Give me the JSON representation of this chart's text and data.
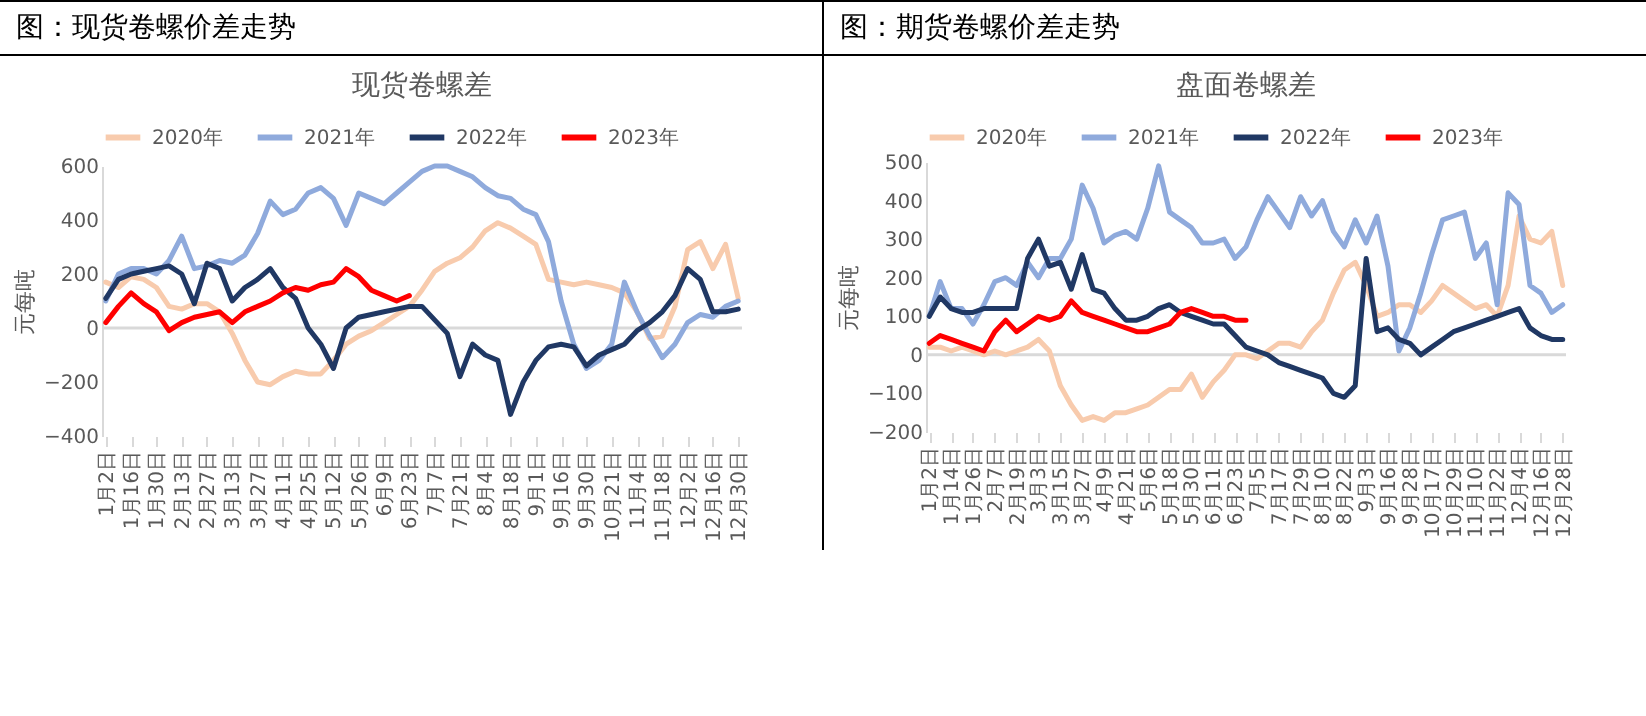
{
  "chart_data": [
    {
      "type": "line",
      "title": "图：现货卷螺价差走势",
      "subtitle": "现货卷螺差",
      "ylabel": "元每吨",
      "legend": "top",
      "ylim": [
        -400,
        600
      ],
      "yticks": [
        -400,
        -200,
        0,
        200,
        400,
        600
      ],
      "ref_lines": [
        {
          "axis": "y",
          "value": 0,
          "color": "#d9d9d9"
        }
      ],
      "categories": [
        "1月2日",
        null,
        "1月16日",
        null,
        "1月30日",
        null,
        "2月13日",
        null,
        "2月27日",
        null,
        "3月13日",
        null,
        "3月27日",
        null,
        "4月11日",
        null,
        "4月25日",
        null,
        "5月12日",
        null,
        "5月26日",
        null,
        "6月9日",
        null,
        "6月23日",
        null,
        "7月7日",
        null,
        "7月21日",
        null,
        "8月4日",
        null,
        "8月18日",
        null,
        "9月1日",
        null,
        "9月16日",
        null,
        "9月30日",
        null,
        "10月21日",
        null,
        "11月4日",
        null,
        "11月18日",
        null,
        "12月2日",
        null,
        "12月16日",
        null,
        "12月30日"
      ],
      "series": [
        {
          "name": "2020年",
          "color": "#f8cbad",
          "values": [
            170,
            150,
            190,
            180,
            150,
            80,
            70,
            90,
            90,
            60,
            -20,
            -120,
            -200,
            -210,
            -180,
            -160,
            -170,
            -170,
            -120,
            -60,
            -30,
            -10,
            20,
            50,
            80,
            140,
            210,
            240,
            260,
            300,
            360,
            390,
            370,
            340,
            310,
            180,
            170,
            160,
            170,
            160,
            150,
            130,
            60,
            -40,
            -30,
            80,
            290,
            320,
            220,
            310,
            110
          ]
        },
        {
          "name": "2021年",
          "color": "#8faadc",
          "values": [
            100,
            200,
            220,
            220,
            200,
            250,
            340,
            220,
            230,
            250,
            240,
            270,
            350,
            470,
            420,
            440,
            500,
            520,
            480,
            380,
            500,
            480,
            460,
            500,
            540,
            580,
            600,
            600,
            580,
            560,
            520,
            490,
            480,
            440,
            420,
            320,
            100,
            -60,
            -150,
            -120,
            -60,
            170,
            60,
            -30,
            -110,
            -60,
            20,
            50,
            40,
            80,
            100
          ]
        },
        {
          "name": "2022年",
          "color": "#203864",
          "values": [
            110,
            180,
            200,
            210,
            220,
            230,
            200,
            90,
            240,
            220,
            100,
            150,
            180,
            220,
            150,
            110,
            0,
            -60,
            -150,
            0,
            40,
            50,
            60,
            70,
            80,
            80,
            30,
            -20,
            -180,
            -60,
            -100,
            -120,
            -320,
            -200,
            -120,
            -70,
            -60,
            -70,
            -140,
            -100,
            -80,
            -60,
            -10,
            20,
            60,
            120,
            220,
            180,
            60,
            60,
            70
          ]
        },
        {
          "name": "2023年",
          "color": "#ff0000",
          "values": [
            20,
            80,
            130,
            90,
            60,
            -10,
            20,
            40,
            50,
            60,
            20,
            60,
            80,
            100,
            130,
            150,
            140,
            160,
            170,
            220,
            190,
            140,
            120,
            100,
            120,
            null,
            null,
            null,
            null,
            null,
            null,
            null,
            null,
            null,
            null,
            null,
            null,
            null,
            null,
            null,
            null,
            null,
            null,
            null,
            null,
            null,
            null,
            null,
            null,
            null,
            null
          ]
        }
      ]
    },
    {
      "type": "line",
      "title": "图：期货卷螺价差走势",
      "subtitle": "盘面卷螺差",
      "ylabel": "元每吨",
      "legend": "top",
      "ylim": [
        -200,
        500
      ],
      "yticks": [
        -200,
        -100,
        0,
        100,
        200,
        300,
        400,
        500
      ],
      "ref_lines": [
        {
          "axis": "y",
          "value": 0,
          "color": "#d9d9d9"
        }
      ],
      "categories": [
        "1月2日",
        null,
        "1月14日",
        null,
        "1月26日",
        null,
        "2月7日",
        null,
        "2月19日",
        null,
        "3月3日",
        null,
        "3月15日",
        null,
        "3月27日",
        null,
        "4月9日",
        null,
        "4月21日",
        null,
        "5月6日",
        null,
        "5月18日",
        null,
        "5月30日",
        null,
        "6月11日",
        null,
        "6月23日",
        null,
        "7月5日",
        null,
        "7月17日",
        null,
        "7月29日",
        null,
        "8月10日",
        null,
        "8月22日",
        null,
        "9月3日",
        null,
        "9月16日",
        null,
        "9月28日",
        null,
        "10月17日",
        null,
        "10月29日",
        null,
        "11月10日",
        null,
        "11月22日",
        null,
        "12月4日",
        null,
        "12月16日",
        null,
        "12月28日"
      ],
      "series": [
        {
          "name": "2020年",
          "color": "#f8cbad",
          "values": [
            20,
            20,
            10,
            20,
            10,
            0,
            10,
            0,
            10,
            20,
            40,
            10,
            -80,
            -130,
            -170,
            -160,
            -170,
            -150,
            -150,
            -140,
            -130,
            -110,
            -90,
            -90,
            -50,
            -110,
            -70,
            -40,
            0,
            0,
            -10,
            10,
            30,
            30,
            20,
            60,
            90,
            160,
            220,
            240,
            180,
            100,
            110,
            130,
            130,
            110,
            140,
            180,
            160,
            140,
            120,
            130,
            100,
            180,
            360,
            300,
            290,
            320,
            180
          ]
        },
        {
          "name": "2021年",
          "color": "#8faadc",
          "values": [
            100,
            190,
            120,
            120,
            80,
            130,
            190,
            200,
            180,
            240,
            200,
            250,
            250,
            300,
            440,
            380,
            290,
            310,
            320,
            300,
            380,
            490,
            370,
            350,
            330,
            290,
            290,
            300,
            250,
            280,
            350,
            410,
            370,
            330,
            410,
            360,
            400,
            320,
            280,
            350,
            290,
            360,
            230,
            10,
            70,
            160,
            260,
            350,
            360,
            370,
            250,
            290,
            130,
            420,
            390,
            180,
            160,
            110,
            130
          ]
        },
        {
          "name": "2022年",
          "color": "#203864",
          "values": [
            100,
            150,
            120,
            110,
            110,
            120,
            120,
            120,
            120,
            250,
            300,
            230,
            240,
            170,
            260,
            170,
            160,
            120,
            90,
            90,
            100,
            120,
            130,
            110,
            100,
            90,
            80,
            80,
            50,
            20,
            10,
            0,
            -20,
            -30,
            -40,
            -50,
            -60,
            -100,
            -110,
            -80,
            250,
            60,
            70,
            40,
            30,
            0,
            20,
            40,
            60,
            70,
            80,
            90,
            100,
            110,
            120,
            70,
            50,
            40,
            40
          ]
        },
        {
          "name": "2023年",
          "color": "#ff0000",
          "values": [
            30,
            50,
            40,
            30,
            20,
            10,
            60,
            90,
            60,
            80,
            100,
            90,
            100,
            140,
            110,
            100,
            90,
            80,
            70,
            60,
            60,
            70,
            80,
            110,
            120,
            110,
            100,
            100,
            90,
            90,
            null,
            null,
            null,
            null,
            null,
            null,
            null,
            null,
            null,
            null,
            null,
            null,
            null,
            null,
            null,
            null,
            null,
            null,
            null,
            null,
            null,
            null,
            null,
            null,
            null,
            null,
            null,
            null,
            null
          ]
        }
      ]
    }
  ]
}
